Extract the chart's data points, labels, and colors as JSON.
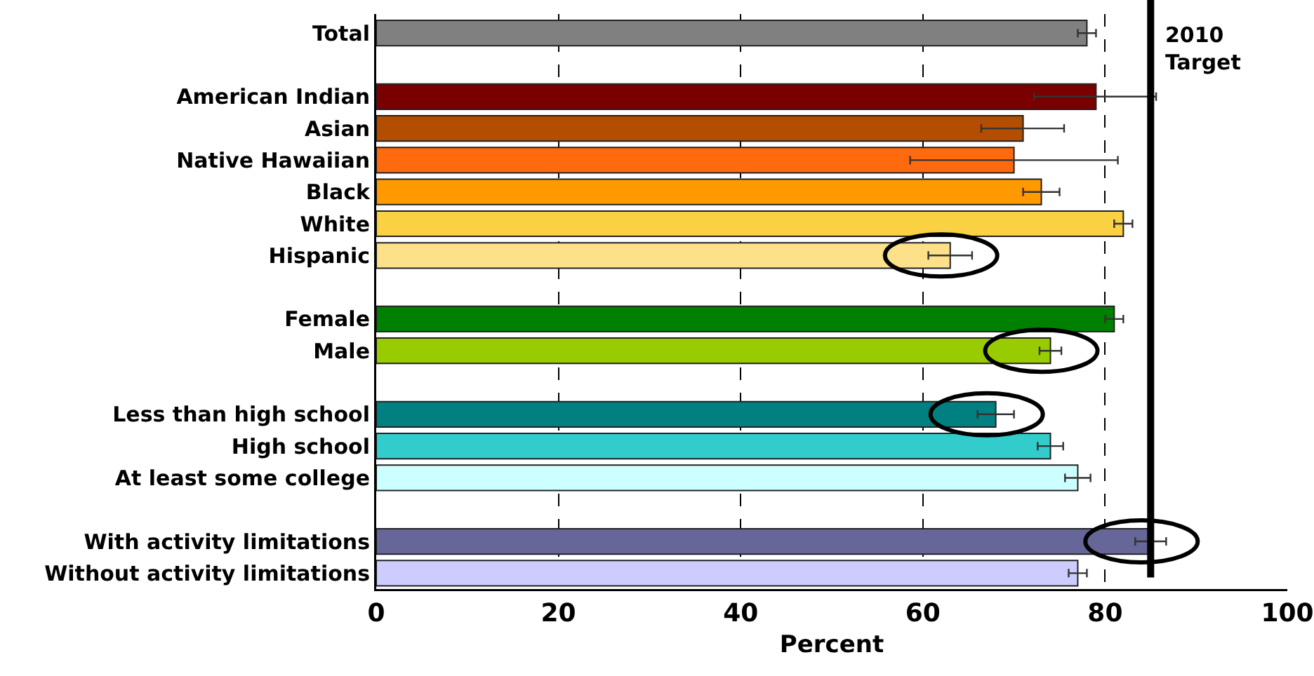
{
  "chart_data": {
    "type": "bar",
    "orientation": "horizontal",
    "xlabel": "Percent",
    "categories": [
      "Total",
      null,
      "American Indian",
      "Asian",
      "Native Hawaiian",
      "Black",
      "White",
      "Hispanic",
      null,
      "Female",
      "Male",
      null,
      "Less than high school",
      "High school",
      "At least some college",
      null,
      "With activity limitations",
      "Without activity limitations"
    ],
    "values": [
      78,
      null,
      79,
      71,
      70,
      73,
      82,
      63,
      null,
      81,
      74,
      null,
      68,
      74,
      77,
      null,
      85,
      77
    ],
    "colors": [
      "#808080",
      "#ffffff",
      "#7a0000",
      "#b34d00",
      "#ff6a0e",
      "#ff9900",
      "#f9d142",
      "#fde08a",
      "#ffffff",
      "#008000",
      "#99cc00",
      "#ffffff",
      "#008080",
      "#33cccc",
      "#ccffff",
      "#ffffff",
      "#666699",
      "#ccccff"
    ],
    "errors": [
      1,
      null,
      [
        72.2,
        85.6
      ],
      [
        66.4,
        75.5
      ],
      [
        58.6,
        81.4
      ],
      2,
      1,
      2.4,
      null,
      1,
      1.2,
      null,
      2,
      1.4,
      1.4,
      null,
      1.7,
      1
    ],
    "xlim": [
      0,
      100
    ],
    "xticks": [
      0,
      20,
      40,
      60,
      80,
      100
    ],
    "grid": "x",
    "ref_lines": [
      {
        "axis": "x",
        "value": 85,
        "label": "2010 Target",
        "color": "#000000"
      }
    ]
  }
}
